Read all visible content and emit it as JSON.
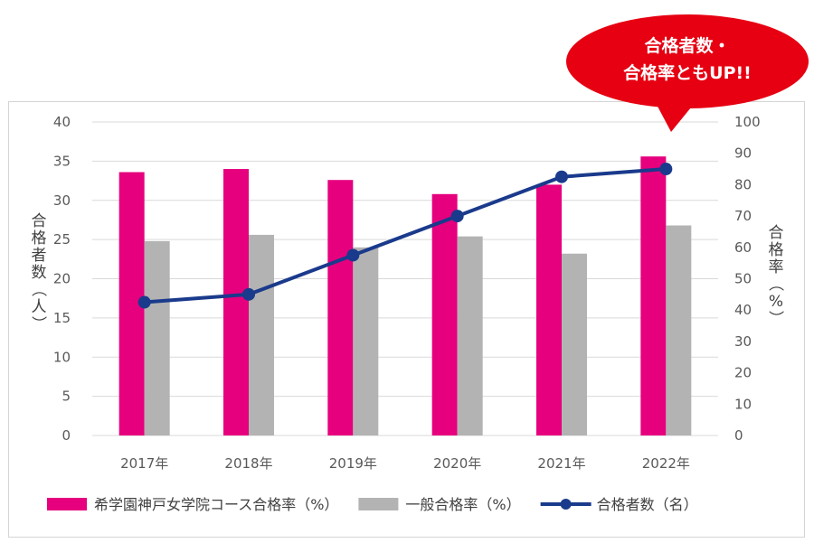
{
  "chart_data": {
    "type": "bar",
    "categories": [
      "2017年",
      "2018年",
      "2019年",
      "2020年",
      "2021年",
      "2022年"
    ],
    "series": [
      {
        "name": "希学園神戸女学院コース合格率（%）",
        "kind": "bar",
        "axis": "right",
        "color": "#e6007e",
        "values": [
          84,
          85,
          81.5,
          77,
          80,
          89
        ]
      },
      {
        "name": "一般合格率（%）",
        "kind": "bar",
        "axis": "right",
        "color": "#b3b3b3",
        "values": [
          62,
          64,
          60,
          63.5,
          58,
          67
        ]
      },
      {
        "name": "合格者数（名）",
        "kind": "line",
        "axis": "left",
        "color": "#1a3a8c",
        "values": [
          17,
          18,
          23,
          28,
          33,
          34
        ]
      }
    ],
    "left_axis": {
      "label": "合格者数（人）",
      "min": 0,
      "max": 40,
      "step": 5
    },
    "right_axis": {
      "label": "合格率（%）",
      "min": 0,
      "max": 100,
      "step": 10
    },
    "callout": [
      "合格者数・",
      "合格率ともUP!!"
    ],
    "callout_color": "#e60012",
    "legend_position": "bottom",
    "grid": true
  }
}
